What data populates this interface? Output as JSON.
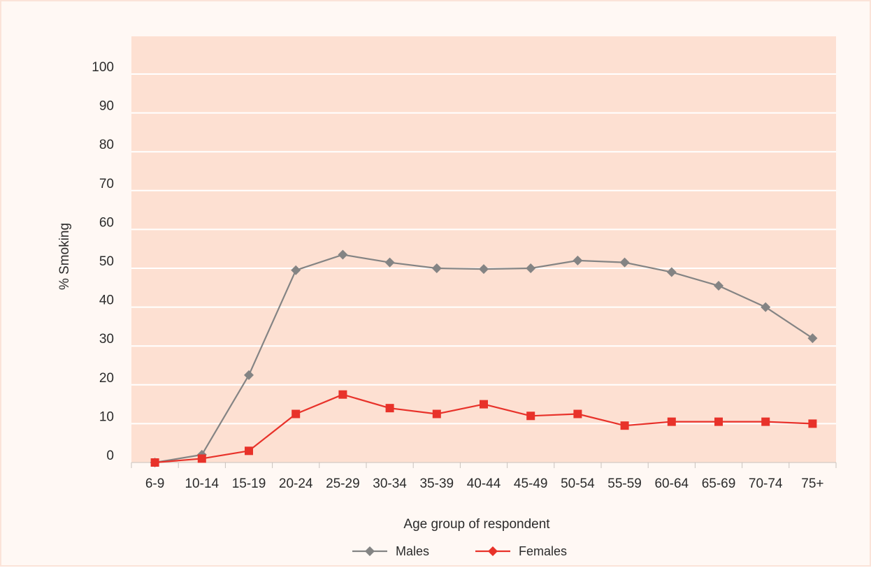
{
  "chart_data": {
    "type": "line",
    "title": "",
    "xlabel": "Age group of respondent",
    "ylabel": "% Smoking",
    "categories": [
      "6-9",
      "10-14",
      "15-19",
      "20-24",
      "25-29",
      "30-34",
      "35-39",
      "40-44",
      "45-49",
      "50-54",
      "55-59",
      "60-64",
      "65-69",
      "70-74",
      "75+"
    ],
    "yticks": [
      0,
      10,
      20,
      30,
      40,
      50,
      60,
      70,
      80,
      90,
      100
    ],
    "ylim": [
      0,
      100
    ],
    "grid": true,
    "legend_position": "bottom",
    "series": [
      {
        "name": "Males",
        "color": "#848484",
        "marker": "diamond",
        "values": [
          0,
          2,
          22.5,
          49.5,
          53.5,
          51.5,
          50,
          49.8,
          50,
          52,
          51.5,
          49,
          45.5,
          40,
          32
        ]
      },
      {
        "name": "Females",
        "color": "#e8322a",
        "marker": "square",
        "values": [
          0,
          1,
          3,
          12.5,
          17.5,
          14,
          12.5,
          15,
          12,
          12.5,
          9.5,
          10.5,
          10.5,
          10.5,
          10
        ]
      }
    ]
  },
  "colors": {
    "plot_background": "#fde0d2",
    "gridline": "#ffffff",
    "page_background": "#fff8f4"
  }
}
